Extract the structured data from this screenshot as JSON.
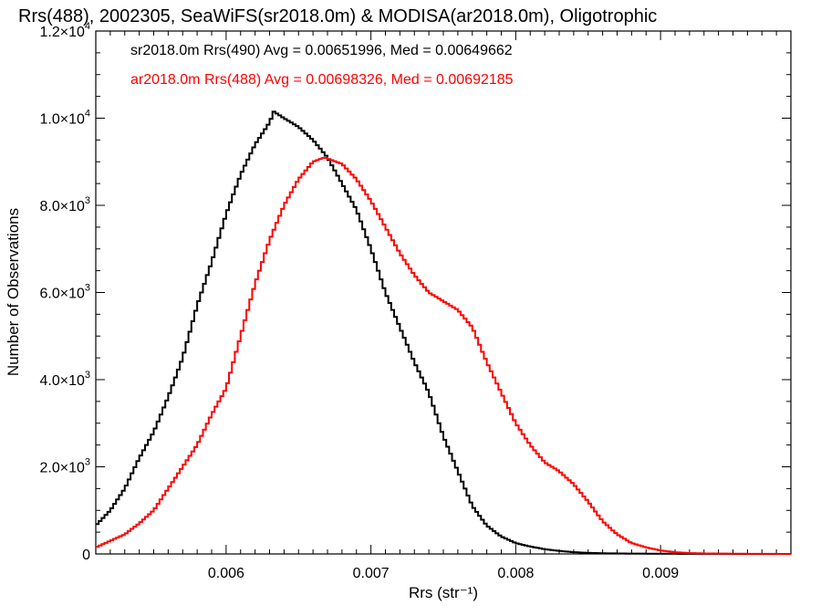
{
  "chart_data": {
    "type": "line",
    "title": "Rrs(488), 2002305, SeaWiFS(sr2018.0m) & MODISA(ar2018.0m), Oligotrophic",
    "xlabel": "Rrs (str⁻¹)",
    "ylabel": "Number of Observations",
    "xlim": [
      0.0051,
      0.0099
    ],
    "ylim": [
      0,
      12000
    ],
    "x_ticks": [
      0.006,
      0.007,
      0.008,
      0.009
    ],
    "x_tick_labels": [
      "0.006",
      "0.007",
      "0.008",
      "0.009"
    ],
    "y_ticks": [
      0,
      2000,
      4000,
      6000,
      8000,
      10000,
      12000
    ],
    "y_tick_labels": [
      {
        "mantissa": "0",
        "exponent": ""
      },
      {
        "mantissa": "2.0×10",
        "exponent": "3"
      },
      {
        "mantissa": "4.0×10",
        "exponent": "3"
      },
      {
        "mantissa": "6.0×10",
        "exponent": "3"
      },
      {
        "mantissa": "8.0×10",
        "exponent": "3"
      },
      {
        "mantissa": "1.0×10",
        "exponent": "4"
      },
      {
        "mantissa": "1.2×10",
        "exponent": "4"
      }
    ],
    "series": [
      {
        "legend": "sr2018.0m Rrs(490) Avg = 0.00651996, Med = 0.00649662",
        "color": "#000000",
        "points": [
          [
            0.0051,
            650
          ],
          [
            0.0052,
            1000
          ],
          [
            0.0053,
            1500
          ],
          [
            0.0054,
            2200
          ],
          [
            0.0055,
            2800
          ],
          [
            0.0056,
            3600
          ],
          [
            0.0057,
            4500
          ],
          [
            0.0058,
            5700
          ],
          [
            0.0059,
            6700
          ],
          [
            0.006,
            7800
          ],
          [
            0.0061,
            8700
          ],
          [
            0.0062,
            9400
          ],
          [
            0.0063,
            9900
          ],
          [
            0.00633,
            10150
          ],
          [
            0.0064,
            10000
          ],
          [
            0.0065,
            9800
          ],
          [
            0.0066,
            9500
          ],
          [
            0.0067,
            9100
          ],
          [
            0.0068,
            8500
          ],
          [
            0.0069,
            7900
          ],
          [
            0.007,
            7000
          ],
          [
            0.0071,
            6000
          ],
          [
            0.0072,
            5200
          ],
          [
            0.0073,
            4400
          ],
          [
            0.0074,
            3700
          ],
          [
            0.0075,
            2700
          ],
          [
            0.0076,
            1900
          ],
          [
            0.0077,
            1100
          ],
          [
            0.0078,
            650
          ],
          [
            0.0079,
            400
          ],
          [
            0.008,
            250
          ],
          [
            0.0081,
            170
          ],
          [
            0.0082,
            110
          ],
          [
            0.0083,
            70
          ],
          [
            0.0084,
            40
          ],
          [
            0.0085,
            25
          ],
          [
            0.0086,
            15
          ],
          [
            0.0088,
            8
          ],
          [
            0.009,
            5
          ],
          [
            0.0093,
            2
          ],
          [
            0.0099,
            0
          ]
        ]
      },
      {
        "legend": "ar2018.0m Rrs(488) Avg = 0.00698326, Med = 0.00692185",
        "color": "#ff0000",
        "points": [
          [
            0.0051,
            150
          ],
          [
            0.0052,
            300
          ],
          [
            0.0053,
            450
          ],
          [
            0.0054,
            700
          ],
          [
            0.0055,
            1000
          ],
          [
            0.0056,
            1500
          ],
          [
            0.0057,
            2000
          ],
          [
            0.0058,
            2500
          ],
          [
            0.0059,
            3200
          ],
          [
            0.006,
            3800
          ],
          [
            0.0061,
            5000
          ],
          [
            0.0062,
            6200
          ],
          [
            0.0063,
            7200
          ],
          [
            0.0064,
            8000
          ],
          [
            0.0065,
            8600
          ],
          [
            0.0066,
            9000
          ],
          [
            0.00668,
            9100
          ],
          [
            0.0068,
            8950
          ],
          [
            0.0069,
            8600
          ],
          [
            0.007,
            8100
          ],
          [
            0.0071,
            7500
          ],
          [
            0.0072,
            6900
          ],
          [
            0.0073,
            6400
          ],
          [
            0.0074,
            6000
          ],
          [
            0.0075,
            5800
          ],
          [
            0.0076,
            5600
          ],
          [
            0.0077,
            5200
          ],
          [
            0.0078,
            4400
          ],
          [
            0.0079,
            3700
          ],
          [
            0.008,
            3000
          ],
          [
            0.0081,
            2500
          ],
          [
            0.0082,
            2100
          ],
          [
            0.0083,
            1900
          ],
          [
            0.0084,
            1600
          ],
          [
            0.0085,
            1200
          ],
          [
            0.0086,
            750
          ],
          [
            0.0087,
            450
          ],
          [
            0.0088,
            250
          ],
          [
            0.0089,
            150
          ],
          [
            0.009,
            80
          ],
          [
            0.0091,
            40
          ],
          [
            0.0092,
            20
          ],
          [
            0.0093,
            12
          ],
          [
            0.0095,
            5
          ],
          [
            0.0099,
            0
          ]
        ]
      }
    ],
    "legend_placement": "top-left",
    "grid": false
  }
}
